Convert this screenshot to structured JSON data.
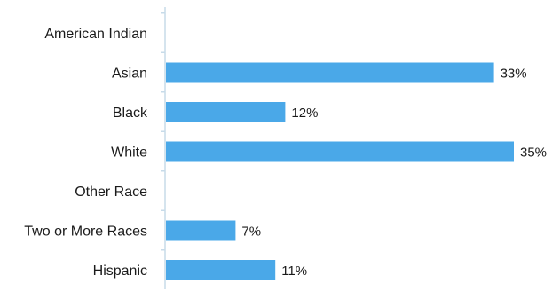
{
  "chart_data": {
    "type": "bar",
    "orientation": "horizontal",
    "categories": [
      "American Indian",
      "Asian",
      "Black",
      "White",
      "Other Race",
      "Two or More Races",
      "Hispanic"
    ],
    "values": [
      null,
      33,
      12,
      35,
      null,
      7,
      11
    ],
    "value_labels": [
      "",
      "33%",
      "12%",
      "35%",
      "",
      "7%",
      "11%"
    ],
    "title": "",
    "xlabel": "",
    "ylabel": "",
    "xlim": [
      0,
      35
    ],
    "grid": false,
    "legend": "none",
    "colors": {
      "bar": "#4aa8e8",
      "axis": "#c7dbe9",
      "text": "#1a1a1a"
    }
  }
}
